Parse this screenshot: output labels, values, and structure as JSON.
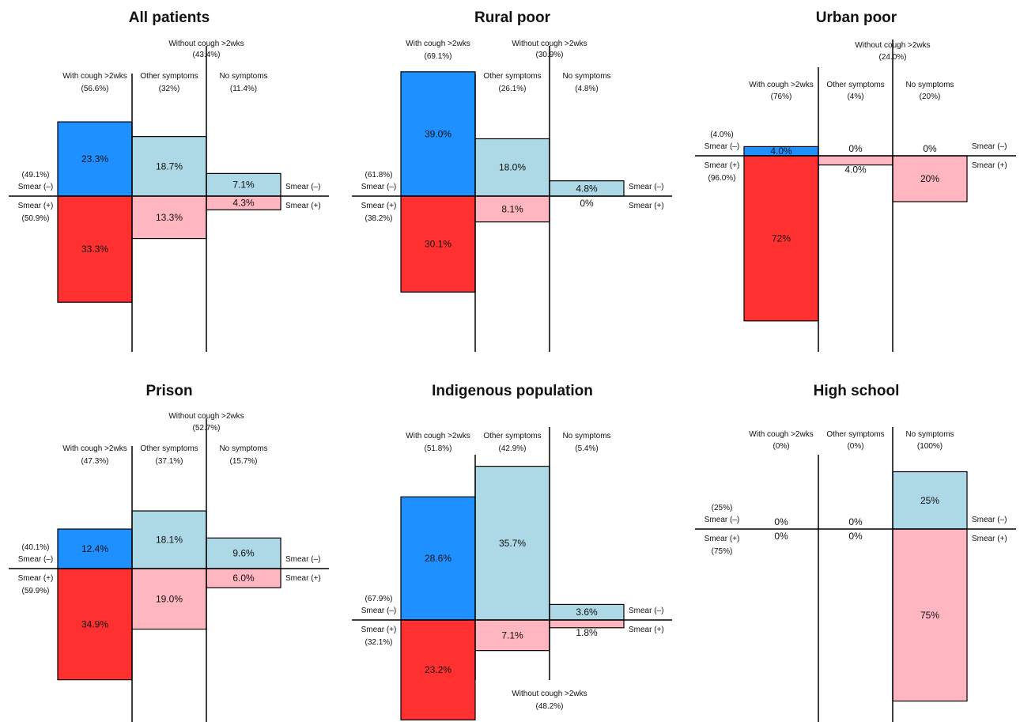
{
  "colors": {
    "with_cough_neg": "#1e90ff",
    "with_cough_pos": "#ff3030",
    "other_neg": "#add8e6",
    "other_pos": "#ffb6c1",
    "none_neg": "#add8e6",
    "none_pos": "#ffb6c1"
  },
  "chart_data": [
    {
      "type": "bar",
      "title": "All patients",
      "group_labels": [
        "With cough >2wks",
        "Other symptoms",
        "No symptoms"
      ],
      "group_pcts": [
        "(56.6%)",
        "(32%)",
        "(11.4%)"
      ],
      "without_cough_label": "Without cough >2wks",
      "without_cough_pct": "(43.4%)",
      "smear_neg_label": "Smear (–)",
      "smear_pos_label": "Smear (+)",
      "smear_neg_pct": "(49.1%)",
      "smear_pos_pct": "(50.9%)",
      "series": [
        {
          "name": "Smear (–)",
          "values": [
            23.3,
            18.7,
            7.1
          ],
          "labels": [
            "23.3%",
            "18.7%",
            "7.1%"
          ]
        },
        {
          "name": "Smear (+)",
          "values": [
            33.3,
            13.3,
            4.3
          ],
          "labels": [
            "33.3%",
            "13.3%",
            "4.3%"
          ]
        }
      ]
    },
    {
      "type": "bar",
      "title": "Rural poor",
      "group_labels": [
        "With cough >2wks",
        "Other symptoms",
        "No symptoms"
      ],
      "group_pcts": [
        "(69.1%)",
        "(26.1%)",
        "(4.8%)"
      ],
      "without_cough_label": "Without cough >2wks",
      "without_cough_pct": "(30.9%)",
      "smear_neg_label": "Smear (–)",
      "smear_pos_label": "Smear (+)",
      "smear_neg_pct": "(61.8%)",
      "smear_pos_pct": "(38.2%)",
      "series": [
        {
          "name": "Smear (–)",
          "values": [
            39.0,
            18.0,
            4.8
          ],
          "labels": [
            "39.0%",
            "18.0%",
            "4.8%"
          ]
        },
        {
          "name": "Smear (+)",
          "values": [
            30.1,
            8.1,
            0
          ],
          "labels": [
            "30.1%",
            "8.1%",
            "0%"
          ]
        }
      ]
    },
    {
      "type": "bar",
      "title": "Urban poor",
      "group_labels": [
        "With cough >2wks",
        "Other symptoms",
        "No symptoms"
      ],
      "group_pcts": [
        "(76%)",
        "(4%)",
        "(20%)"
      ],
      "without_cough_label": "Without cough >2wks",
      "without_cough_pct": "(24.0%)",
      "smear_neg_label": "Smear (–)",
      "smear_pos_label": "Smear (+)",
      "smear_neg_pct": "(4.0%)",
      "smear_pos_pct": "(96.0%)",
      "series": [
        {
          "name": "Smear (–)",
          "values": [
            4.0,
            0,
            0
          ],
          "labels": [
            "4.0%",
            "0%",
            "0%"
          ]
        },
        {
          "name": "Smear (+)",
          "values": [
            72,
            4.0,
            20
          ],
          "labels": [
            "72%",
            "4.0%",
            "20%"
          ]
        }
      ]
    },
    {
      "type": "bar",
      "title": "Prison",
      "group_labels": [
        "With cough >2wks",
        "Other symptoms",
        "No symptoms"
      ],
      "group_pcts": [
        "(47.3%)",
        "(37.1%)",
        "(15.7%)"
      ],
      "without_cough_label": "Without cough >2wks",
      "without_cough_pct": "(52.7%)",
      "smear_neg_label": "Smear (–)",
      "smear_pos_label": "Smear (+)",
      "smear_neg_pct": "(40.1%)",
      "smear_pos_pct": "(59.9%)",
      "series": [
        {
          "name": "Smear (–)",
          "values": [
            12.4,
            18.1,
            9.6
          ],
          "labels": [
            "12.4%",
            "18.1%",
            "9.6%"
          ]
        },
        {
          "name": "Smear (+)",
          "values": [
            34.9,
            19.0,
            6.0
          ],
          "labels": [
            "34.9%",
            "19.0%",
            "6.0%"
          ]
        }
      ]
    },
    {
      "type": "bar",
      "title": "Indigenous population",
      "group_labels": [
        "With cough >2wks",
        "Other symptoms",
        "No symptoms"
      ],
      "group_pcts": [
        "(51.8%)",
        "(42.9%)",
        "(5.4%)"
      ],
      "without_cough_label": "Without cough >2wks",
      "without_cough_pct": "(48.2%)",
      "smear_neg_label": "Smear (–)",
      "smear_pos_label": "Smear (+)",
      "smear_neg_pct": "(67.9%)",
      "smear_pos_pct": "(32.1%)",
      "series": [
        {
          "name": "Smear (–)",
          "values": [
            28.6,
            35.7,
            3.6
          ],
          "labels": [
            "28.6%",
            "35.7%",
            "3.6%"
          ]
        },
        {
          "name": "Smear (+)",
          "values": [
            23.2,
            7.1,
            1.8
          ],
          "labels": [
            "23.2%",
            "7.1%",
            "1.8%"
          ]
        }
      ]
    },
    {
      "type": "bar",
      "title": "High school",
      "group_labels": [
        "With cough >2wks",
        "Other symptoms",
        "No symptoms"
      ],
      "group_pcts": [
        "(0%)",
        "(0%)",
        "(100%)"
      ],
      "without_cough_label": "",
      "without_cough_pct": "",
      "smear_neg_label": "Smear (–)",
      "smear_pos_label": "Smear (+)",
      "smear_neg_pct": "(25%)",
      "smear_pos_pct": "(75%)",
      "series": [
        {
          "name": "Smear (–)",
          "values": [
            0,
            0,
            25
          ],
          "labels": [
            "0%",
            "0%",
            "25%"
          ]
        },
        {
          "name": "Smear (+)",
          "values": [
            0,
            0,
            75
          ],
          "labels": [
            "0%",
            "0%",
            "75%"
          ]
        }
      ]
    }
  ]
}
